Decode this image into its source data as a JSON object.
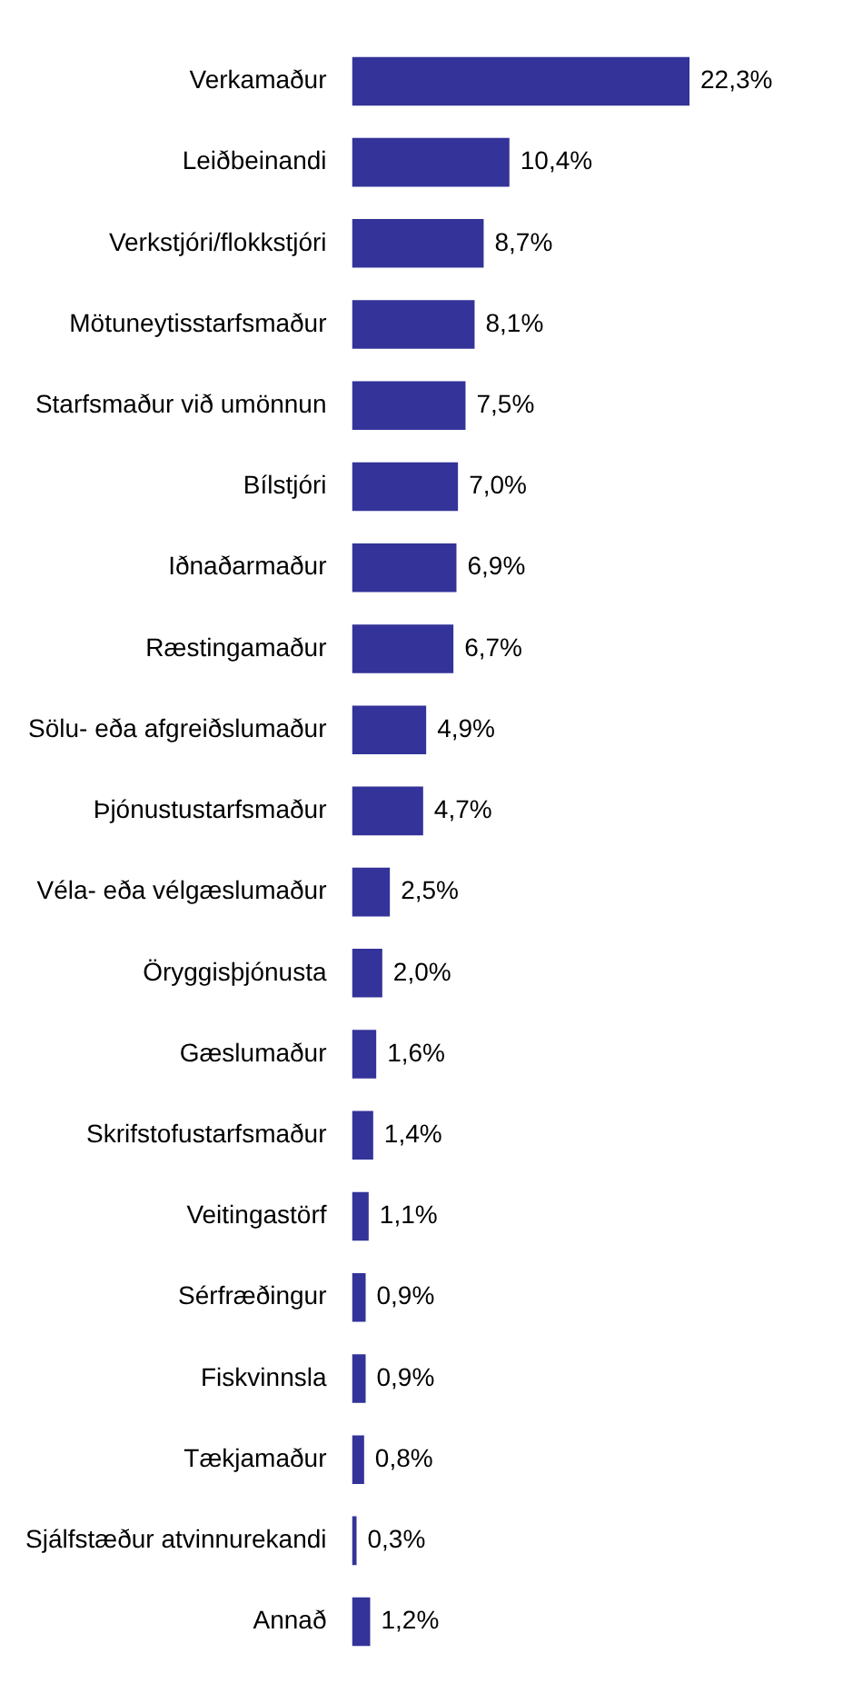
{
  "chart_data": {
    "type": "bar",
    "orientation": "horizontal",
    "categories": [
      "Verkamaður",
      "Leiðbeinandi",
      "Verkstjóri/flokkstjóri",
      "Mötuneytisstarfsmaður",
      "Starfsmaður við umönnun",
      "Bílstjóri",
      "Iðnaðarmaður",
      "Ræstingamaður",
      "Sölu- eða afgreiðslumaður",
      "Þjónustustarfsmaður",
      "Véla- eða vélgæslumaður",
      "Öryggisþjónusta",
      "Gæslumaður",
      "Skrifstofustarfsmaður",
      "Veitingastörf",
      "Sérfræðingur",
      "Fiskvinnsla",
      "Tækjamaður",
      "Sjálfstæður atvinnurekandi",
      "Annað"
    ],
    "values": [
      22.3,
      10.4,
      8.7,
      8.1,
      7.5,
      7.0,
      6.9,
      6.7,
      4.9,
      4.7,
      2.5,
      2.0,
      1.6,
      1.4,
      1.1,
      0.9,
      0.9,
      0.8,
      0.3,
      1.2
    ],
    "value_labels": [
      "22,3%",
      "10,4%",
      "8,7%",
      "8,1%",
      "7,5%",
      "7,0%",
      "6,9%",
      "6,7%",
      "4,9%",
      "4,7%",
      "2,5%",
      "2,0%",
      "1,6%",
      "1,4%",
      "1,1%",
      "0,9%",
      "0,9%",
      "0,8%",
      "0,3%",
      "1,2%"
    ],
    "color": "#333399",
    "grid": false,
    "legend": false,
    "tick_labels": "y"
  }
}
